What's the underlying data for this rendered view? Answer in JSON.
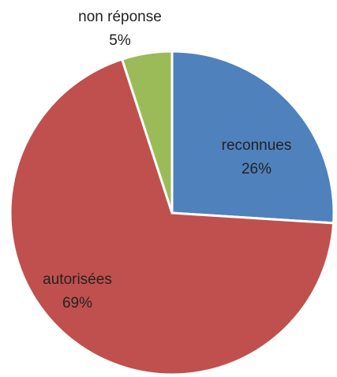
{
  "chart_data": {
    "type": "pie",
    "categories": [
      "reconnues",
      "autorisées",
      "non réponse"
    ],
    "values": [
      26,
      69,
      5
    ],
    "value_labels": [
      "26%",
      "69%",
      "5%"
    ],
    "colors": [
      "#4f81bd",
      "#c0504d",
      "#9bbb59"
    ]
  }
}
